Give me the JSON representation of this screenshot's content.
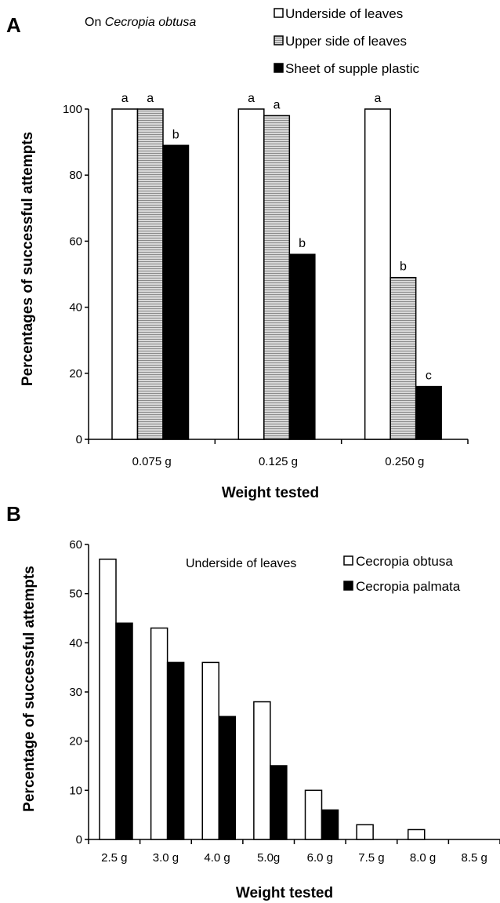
{
  "chart_data": [
    {
      "panel": "A",
      "type": "bar",
      "note_prefix": "On ",
      "note_species": "Cecropia obtusa",
      "xlabel": "Weight tested",
      "ylabel": "Percentages of successful attempts",
      "ylim": [
        0,
        100
      ],
      "yticks": [
        0,
        20,
        40,
        60,
        80,
        100
      ],
      "grid": false,
      "legend_position": "top-right",
      "categories": [
        "0.075 g",
        "0.125 g",
        "0.250 g"
      ],
      "series": [
        {
          "name": "Underside of leaves",
          "color": "#ffffff",
          "pattern": "none",
          "values": [
            100,
            100,
            100
          ],
          "labels": [
            "a",
            "a",
            "a"
          ]
        },
        {
          "name": "Upper side of leaves",
          "color": "#bdbdbd",
          "pattern": "horizontal-lines",
          "values": [
            100,
            98,
            49
          ],
          "labels": [
            "a",
            "a",
            "b"
          ]
        },
        {
          "name": "Sheet of supple plastic",
          "color": "#000000",
          "pattern": "none",
          "values": [
            89,
            56,
            16
          ],
          "labels": [
            "b",
            "b",
            "c"
          ]
        }
      ]
    },
    {
      "panel": "B",
      "type": "bar",
      "note": "Underside of leaves",
      "xlabel": "Weight tested",
      "ylabel": "Percentage of successful attempts",
      "ylim": [
        0,
        60
      ],
      "yticks": [
        0,
        10,
        20,
        30,
        40,
        50,
        60
      ],
      "grid": false,
      "legend_position": "top-right",
      "categories": [
        "2.5 g",
        "3.0 g",
        "4.0 g",
        "5.0g",
        "6.0 g",
        "7.5 g",
        "8.0 g",
        "8.5 g"
      ],
      "series": [
        {
          "name": "Cecropia obtusa",
          "color": "#ffffff",
          "values": [
            57,
            43,
            36,
            28,
            10,
            3,
            2,
            0
          ]
        },
        {
          "name": "Cecropia palmata",
          "color": "#000000",
          "values": [
            44,
            36,
            25,
            15,
            6,
            0,
            0,
            0
          ]
        }
      ]
    }
  ]
}
